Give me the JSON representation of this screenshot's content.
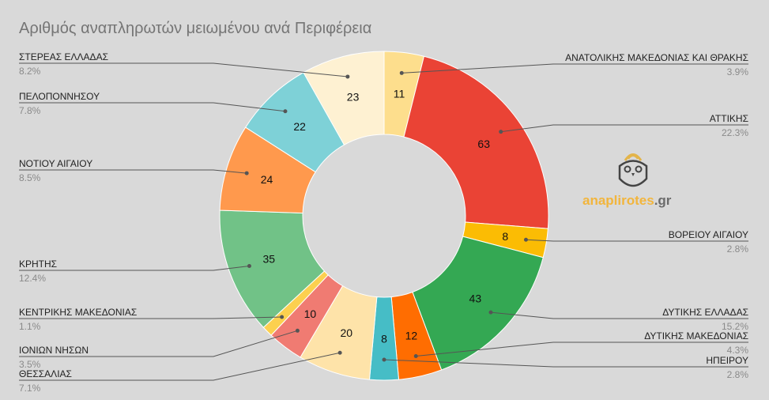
{
  "title": "Αριθμός αναπληρωτών μειωμένου ανά Περιφέρεια",
  "brand": {
    "text_main": "anaplirotes",
    "text_tld": ".gr",
    "main_color": "#f2b53c",
    "tld_color": "#6b6b6b"
  },
  "chart_data": {
    "type": "pie",
    "title": "Αριθμός αναπληρωτών μειωμένου ανά Περιφέρεια",
    "donut": true,
    "slices": [
      {
        "label": "ΑΝΑΤΟΛΙΚΗΣ ΜΑΚΕΔΟΝΙΑΣ ΚΑΙ ΘΡΑΚΗΣ",
        "value": 11,
        "pct": "3.9%",
        "color": "#fdde8d"
      },
      {
        "label": "ΑΤΤΙΚΗΣ",
        "value": 63,
        "pct": "22.3%",
        "color": "#ea4335"
      },
      {
        "label": "ΒΟΡΕΙΟΥ ΑΙΓΑΙΟΥ",
        "value": 8,
        "pct": "2.8%",
        "color": "#fbbc04"
      },
      {
        "label": "ΔΥΤΙΚΗΣ ΕΛΛΑΔΑΣ",
        "value": 43,
        "pct": "15.2%",
        "color": "#34a853"
      },
      {
        "label": "ΔΥΤΙΚΗΣ ΜΑΚΕΔΟΝΙΑΣ",
        "value": 12,
        "pct": "4.3%",
        "color": "#ff6d01"
      },
      {
        "label": "ΗΠΕΙΡΟΥ",
        "value": 8,
        "pct": "2.8%",
        "color": "#46bdc6"
      },
      {
        "label": "ΘΕΣΣΑΛΙΑΣ",
        "value": 20,
        "pct": "7.1%",
        "color": "#fee3a9"
      },
      {
        "label": "ΙΟΝΙΩΝ ΝΗΣΩΝ",
        "value": 10,
        "pct": "3.5%",
        "color": "#f07b72"
      },
      {
        "label": "ΚΕΝΤΡΙΚΗΣ ΜΑΚΕΔΟΝΙΑΣ",
        "value": 3,
        "pct": "1.1%",
        "color": "#fcd04f"
      },
      {
        "label": "ΚΡΗΤΗΣ",
        "value": 35,
        "pct": "12.4%",
        "color": "#71c287"
      },
      {
        "label": "ΝΟΤΙΟΥ ΑΙΓΑΙΟΥ",
        "value": 24,
        "pct": "8.5%",
        "color": "#ff994d"
      },
      {
        "label": "ΠΕΛΟΠΟΝΝΗΣΟΥ",
        "value": 22,
        "pct": "7.8%",
        "color": "#7ed1d7"
      },
      {
        "label": "ΣΤΕΡΕΑΣ ΕΛΛΑΔΑΣ",
        "value": 23,
        "pct": "8.2%",
        "color": "#fef1d2"
      }
    ]
  }
}
